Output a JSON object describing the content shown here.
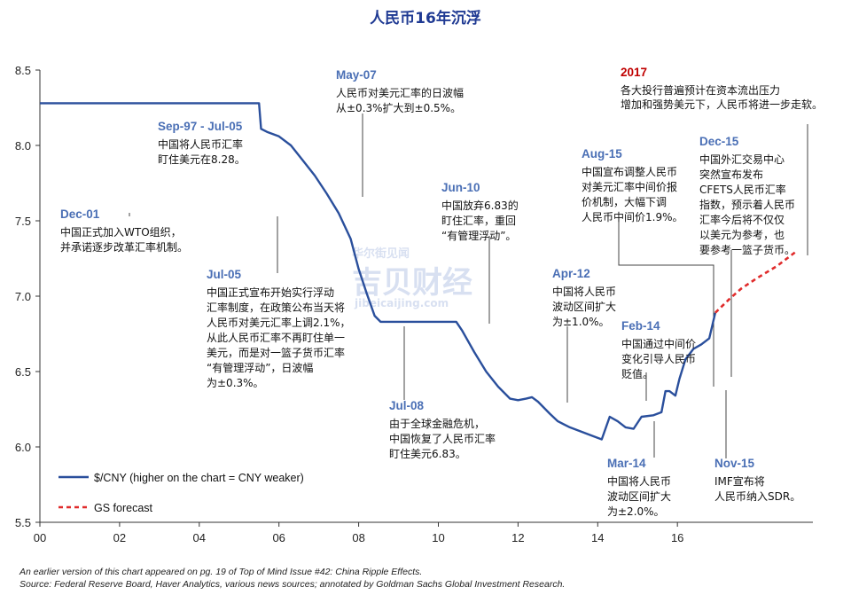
{
  "chart_data": {
    "type": "line",
    "title": "人民币16年沉浮",
    "xlabel": "",
    "ylabel": "",
    "xlim": [
      2000,
      2019.4
    ],
    "ylim": [
      5.5,
      8.5
    ],
    "x_ticks": [
      {
        "value": 2000,
        "label": "00"
      },
      {
        "value": 2002,
        "label": "02"
      },
      {
        "value": 2004,
        "label": "04"
      },
      {
        "value": 2006,
        "label": "06"
      },
      {
        "value": 2008,
        "label": "08"
      },
      {
        "value": 2010,
        "label": "10"
      },
      {
        "value": 2012,
        "label": "12"
      },
      {
        "value": 2014,
        "label": "14"
      },
      {
        "value": 2016,
        "label": "16"
      }
    ],
    "y_ticks": [
      {
        "value": 5.5,
        "label": "5.5"
      },
      {
        "value": 6.0,
        "label": "6.0"
      },
      {
        "value": 6.5,
        "label": "6.5"
      },
      {
        "value": 7.0,
        "label": "7.0"
      },
      {
        "value": 7.5,
        "label": "7.5"
      },
      {
        "value": 8.0,
        "label": "8.0"
      },
      {
        "value": 8.5,
        "label": "8.5"
      }
    ],
    "series": [
      {
        "name": "$/CNY (higher on the chart = CNY weaker)",
        "color": "#2a4f9c",
        "style": "solid",
        "x": [
          2000,
          2001,
          2002,
          2003,
          2004,
          2005,
          2005.5,
          2005.55,
          2005.7,
          2006,
          2006.3,
          2006.6,
          2006.9,
          2007.2,
          2007.5,
          2007.8,
          2008.0,
          2008.2,
          2008.4,
          2008.55,
          2008.7,
          2009.0,
          2009.5,
          2010.0,
          2010.45,
          2010.6,
          2010.9,
          2011.2,
          2011.5,
          2011.8,
          2012.0,
          2012.2,
          2012.35,
          2012.5,
          2012.8,
          2013.0,
          2013.3,
          2013.6,
          2013.9,
          2014.1,
          2014.3,
          2014.5,
          2014.7,
          2014.9,
          2015.1,
          2015.4,
          2015.6,
          2015.7,
          2015.8,
          2015.95,
          2016.05,
          2016.2,
          2016.4,
          2016.6,
          2016.8,
          2016.95
        ],
        "y": [
          8.28,
          8.28,
          8.28,
          8.28,
          8.28,
          8.28,
          8.28,
          8.11,
          8.09,
          8.06,
          8.0,
          7.9,
          7.8,
          7.68,
          7.55,
          7.38,
          7.18,
          7.02,
          6.87,
          6.83,
          6.83,
          6.83,
          6.83,
          6.83,
          6.83,
          6.77,
          6.63,
          6.5,
          6.4,
          6.32,
          6.31,
          6.32,
          6.33,
          6.3,
          6.22,
          6.17,
          6.13,
          6.1,
          6.07,
          6.05,
          6.2,
          6.17,
          6.13,
          6.12,
          6.2,
          6.21,
          6.23,
          6.37,
          6.37,
          6.34,
          6.45,
          6.58,
          6.65,
          6.68,
          6.72,
          6.89
        ]
      },
      {
        "name": "GS forecast",
        "color": "#e02b2b",
        "style": "dashed",
        "x": [
          2016.95,
          2017.3,
          2017.6,
          2018.0,
          2018.5,
          2019.0
        ],
        "y": [
          6.89,
          6.98,
          7.05,
          7.12,
          7.2,
          7.3
        ]
      }
    ],
    "annotations": [
      {
        "head": "Dec-01",
        "lines": [
          "中国正式加入WTO组织，",
          "并承诺逐步改革汇率机制。"
        ]
      },
      {
        "head": "Sep-97 - Jul-05",
        "lines": [
          "中国将人民币汇率",
          "盯住美元在8.28。"
        ]
      },
      {
        "head": "May-07",
        "lines": [
          "人民币对美元汇率的日波幅",
          "从±0.3%扩大到±0.5%。"
        ]
      },
      {
        "head": "Jul-05",
        "lines": [
          "中国正式宣布开始实行浮动",
          "汇率制度，在政策公布当天将",
          "人民币对美元汇率上调2.1%，",
          "从此人民币汇率不再盯住单一",
          "美元，而是对一篮子货币汇率",
          "“有管理浮动”，日波幅",
          "为±0.3%。"
        ]
      },
      {
        "head": "Jun-10",
        "lines": [
          "中国放弃6.83的",
          "盯住汇率，重回",
          "“有管理浮动”。"
        ]
      },
      {
        "head": "Jul-08",
        "lines": [
          "由于全球金融危机，",
          "中国恢复了人民币汇率",
          "盯住美元6.83。"
        ]
      },
      {
        "head": "Apr-12",
        "lines": [
          "中国将人民币",
          "波动区间扩大",
          "为±1.0%。"
        ]
      },
      {
        "head": "Aug-15",
        "lines": [
          "中国宣布调整人民币",
          "对美元汇率中间价报",
          "价机制，大幅下调",
          "人民币中间价1.9%。"
        ]
      },
      {
        "head": "Feb-14",
        "lines": [
          "中国通过中间价",
          "变化引导人民币",
          "贬值。"
        ]
      },
      {
        "head": "Mar-14",
        "lines": [
          "中国将人民币",
          "波动区间扩大",
          "为±2.0%。"
        ]
      },
      {
        "head": "Dec-15",
        "lines": [
          "中国外汇交易中心",
          "突然宣布发布",
          "CFETS人民币汇率",
          "指数，预示着人民币",
          "汇率今后将不仅仅",
          "以美元为参考，也",
          "要参考一篮子货币。"
        ]
      },
      {
        "head": "Nov-15",
        "lines": [
          "IMF宣布将",
          "人民币纳入SDR。"
        ]
      },
      {
        "head": "2017",
        "lines": [
          "各大投行普遍预计在资本流出压力",
          "增加和强势美元下，人民币将进一步走软。"
        ]
      }
    ],
    "legend": {
      "placement": "bottom-left",
      "entries": [
        "$/CNY (higher on the chart = CNY weaker)",
        "GS forecast"
      ]
    }
  },
  "watermark": {
    "text_cn": "华尔街见闻",
    "text_brand": "吉贝财经",
    "url": "jibeicaijing.com"
  },
  "footer": {
    "line1": "An earlier version of this chart appeared on pg. 19 of Top of Mind Issue #42: China Ripple Effects.",
    "line2": "Source: Federal Reserve Board, Haver Analytics, various news sources; annotated by Goldman Sachs Global Investment Research."
  },
  "colors": {
    "line": "#2a4f9c",
    "forecast": "#e02b2b",
    "head": "#4a6fb5",
    "title": "#1f3a93"
  }
}
